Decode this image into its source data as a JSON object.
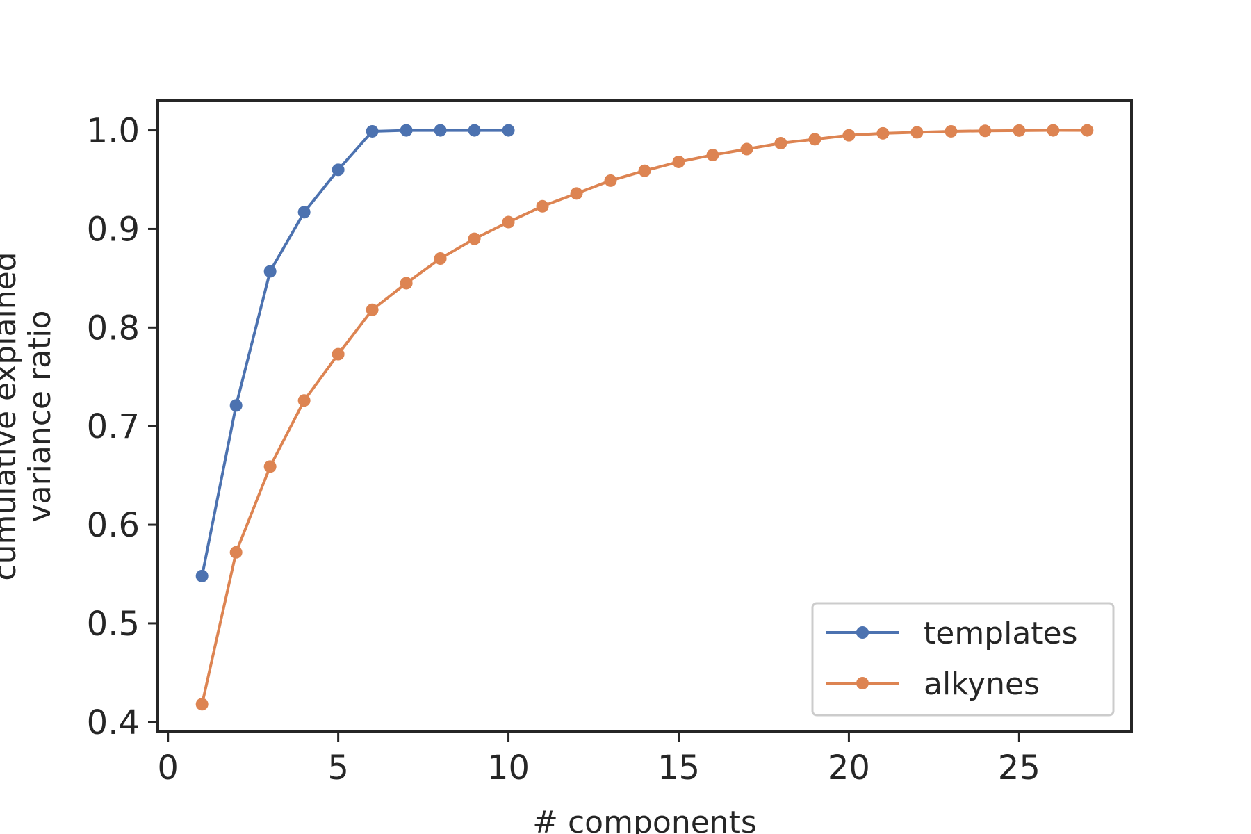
{
  "chart_data": {
    "type": "line",
    "xlabel": "# components",
    "ylabel_line1": "cumulative explained",
    "ylabel_line2": "variance ratio",
    "xlim": [
      -0.3,
      28.3
    ],
    "ylim": [
      0.39,
      1.03
    ],
    "xticks": [
      0,
      5,
      10,
      15,
      20,
      25
    ],
    "xtick_labels": [
      "0",
      "5",
      "10",
      "15",
      "20",
      "25"
    ],
    "yticks": [
      0.4,
      0.5,
      0.6,
      0.7,
      0.8,
      0.9,
      1.0
    ],
    "ytick_labels": [
      "0.4",
      "0.5",
      "0.6",
      "0.7",
      "0.8",
      "0.9",
      "1.0"
    ],
    "grid": false,
    "legend_position": "lower-right",
    "series": [
      {
        "name": "templates",
        "color": "#4c72b0",
        "x": [
          1,
          2,
          3,
          4,
          5,
          6,
          7,
          8,
          9,
          10
        ],
        "y": [
          0.548,
          0.721,
          0.857,
          0.917,
          0.96,
          0.999,
          1.0,
          1.0,
          1.0,
          1.0
        ]
      },
      {
        "name": "alkynes",
        "color": "#dd8452",
        "x": [
          1,
          2,
          3,
          4,
          5,
          6,
          7,
          8,
          9,
          10,
          11,
          12,
          13,
          14,
          15,
          16,
          17,
          18,
          19,
          20,
          21,
          22,
          23,
          24,
          25,
          26,
          27
        ],
        "y": [
          0.418,
          0.572,
          0.659,
          0.726,
          0.773,
          0.818,
          0.845,
          0.87,
          0.89,
          0.907,
          0.923,
          0.936,
          0.949,
          0.959,
          0.968,
          0.975,
          0.981,
          0.987,
          0.991,
          0.995,
          0.997,
          0.998,
          0.999,
          0.9995,
          0.9998,
          1.0,
          1.0
        ]
      }
    ]
  }
}
